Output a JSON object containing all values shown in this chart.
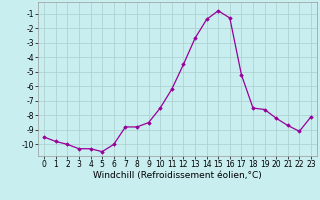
{
  "x": [
    0,
    1,
    2,
    3,
    4,
    5,
    6,
    7,
    8,
    9,
    10,
    11,
    12,
    13,
    14,
    15,
    16,
    17,
    18,
    19,
    20,
    21,
    22,
    23
  ],
  "y": [
    -9.5,
    -9.8,
    -10.0,
    -10.3,
    -10.3,
    -10.5,
    -10.0,
    -8.8,
    -8.8,
    -8.5,
    -7.5,
    -6.2,
    -4.5,
    -2.7,
    -1.4,
    -0.8,
    -1.3,
    -5.2,
    -7.5,
    -7.6,
    -8.2,
    -8.7,
    -9.1,
    -8.1
  ],
  "line_color": "#990099",
  "marker": "D",
  "marker_size": 1.8,
  "bg_color": "#c8eef0",
  "grid_color": "#aacccc",
  "xlabel": "Windchill (Refroidissement éolien,°C)",
  "xlim": [
    -0.5,
    23.5
  ],
  "ylim": [
    -10.8,
    -0.2
  ],
  "yticks": [
    -10,
    -9,
    -8,
    -7,
    -6,
    -5,
    -4,
    -3,
    -2,
    -1
  ],
  "xticks": [
    0,
    1,
    2,
    3,
    4,
    5,
    6,
    7,
    8,
    9,
    10,
    11,
    12,
    13,
    14,
    15,
    16,
    17,
    18,
    19,
    20,
    21,
    22,
    23
  ],
  "tick_fontsize": 5.5,
  "xlabel_fontsize": 6.5,
  "line_width": 0.9
}
